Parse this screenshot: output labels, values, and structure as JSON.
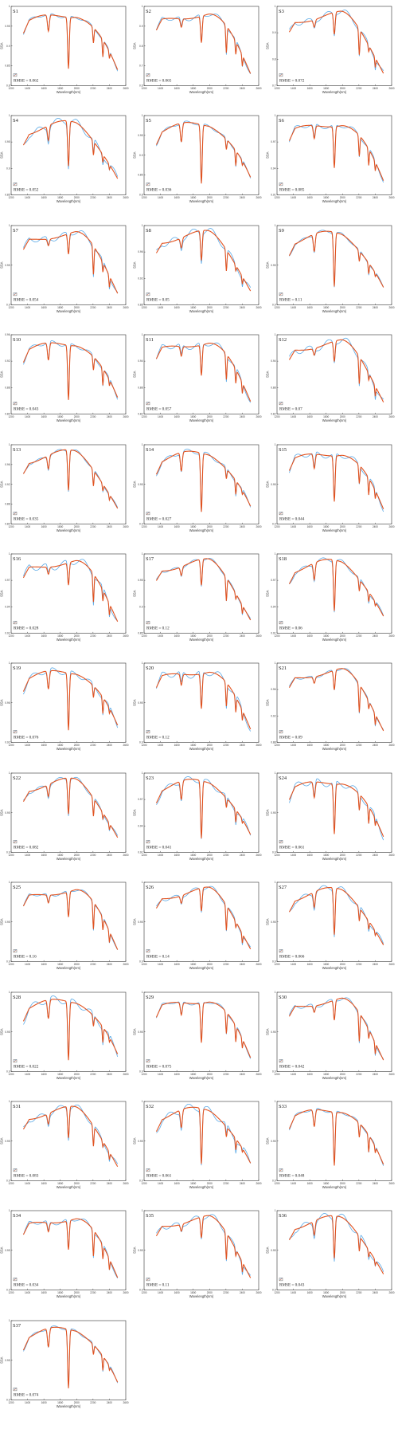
{
  "colors": {
    "measured": "#5aa9e6",
    "fitted": "#e2521f",
    "axis": "#333333"
  },
  "chart_common": {
    "type": "line",
    "xlabel": "Wavelength(nm)",
    "ylabel": "SSA",
    "x_ticks": [
      1200,
      1400,
      1600,
      1800,
      2000,
      2200,
      2400,
      2600
    ],
    "xlim": [
      1200,
      2600
    ],
    "x_range_plotted": [
      1350,
      2500
    ],
    "grid": false,
    "legend": "bottom-left"
  },
  "chart_data": [
    {
      "id": "S1",
      "rmse_label": "RMSE = 0.062",
      "ylim": [
        0.8,
        1.0
      ],
      "y_ticks": [
        "0.8",
        "0.85",
        "0.9",
        "0.95",
        "1"
      ]
    },
    {
      "id": "S2",
      "rmse_label": "RMSE = 0.065",
      "ylim": [
        0.6,
        1.0
      ],
      "y_ticks": [
        "0.6",
        "0.7",
        "0.8",
        "0.9",
        "1"
      ]
    },
    {
      "id": "S3",
      "rmse_label": "RMSE = 0.072",
      "ylim": [
        0.7,
        1.0
      ],
      "y_ticks": [
        "0.7",
        "0.8",
        "0.9",
        "1"
      ]
    },
    {
      "id": "S4",
      "rmse_label": "RMSE = 0.052",
      "ylim": [
        0.85,
        1.0
      ],
      "y_ticks": [
        "0.85",
        "0.9",
        "0.95",
        "1"
      ]
    },
    {
      "id": "S5",
      "rmse_label": "RMSE = 0.036",
      "ylim": [
        0.8,
        1.0
      ],
      "y_ticks": [
        "0.8",
        "0.85",
        "0.9",
        "0.95",
        "1"
      ]
    },
    {
      "id": "S6",
      "rmse_label": "RMSE = 0.085",
      "ylim": [
        0.91,
        1.0
      ],
      "y_ticks": [
        "0.91",
        "0.94",
        "0.97",
        "1"
      ]
    },
    {
      "id": "S7",
      "rmse_label": "RMSE = 0.054",
      "ylim": [
        0.9,
        1.0
      ],
      "y_ticks": [
        "0.9",
        "0.95",
        "1"
      ]
    },
    {
      "id": "S8",
      "rmse_label": "RMSE = 0.05",
      "ylim": [
        0.88,
        1.0
      ],
      "y_ticks": [
        "0.88",
        "0.92",
        "0.96",
        "1"
      ]
    },
    {
      "id": "S9",
      "rmse_label": "RMSE = 0.11",
      "ylim": [
        0.9,
        1.0
      ],
      "y_ticks": [
        "0.9",
        "0.95",
        "1"
      ]
    },
    {
      "id": "S10",
      "rmse_label": "RMSE = 0.043",
      "ylim": [
        0.84,
        0.98
      ],
      "y_ticks": [
        "0.84",
        "0.88",
        "0.92",
        "0.96"
      ]
    },
    {
      "id": "S11",
      "rmse_label": "RMSE = 0.057",
      "ylim": [
        0.82,
        1.0
      ],
      "y_ticks": [
        "0.82",
        "0.88",
        "0.94",
        "1"
      ]
    },
    {
      "id": "S12",
      "rmse_label": "RMSE = 0.07",
      "ylim": [
        0.82,
        1.0
      ],
      "y_ticks": [
        "0.82",
        "0.88",
        "0.94",
        "1"
      ]
    },
    {
      "id": "S13",
      "rmse_label": "RMSE = 0.035",
      "ylim": [
        0.84,
        1.0
      ],
      "y_ticks": [
        "0.84",
        "0.88",
        "0.92",
        "0.96",
        "1"
      ]
    },
    {
      "id": "S14",
      "rmse_label": "RMSE = 0.027",
      "ylim": [
        0.9,
        1.0
      ],
      "y_ticks": [
        "0.9",
        "0.95",
        "1"
      ]
    },
    {
      "id": "S15",
      "rmse_label": "RMSE = 0.044",
      "ylim": [
        0.9,
        1.0
      ],
      "y_ticks": [
        "0.9",
        "0.95",
        "1"
      ]
    },
    {
      "id": "S16",
      "rmse_label": "RMSE = 0.028",
      "ylim": [
        0.91,
        1.0
      ],
      "y_ticks": [
        "0.91",
        "0.94",
        "0.97",
        "1"
      ]
    },
    {
      "id": "S17",
      "rmse_label": "RMSE = 0.12",
      "ylim": [
        0.85,
        1.0
      ],
      "y_ticks": [
        "0.85",
        "0.9",
        "0.95",
        "1"
      ]
    },
    {
      "id": "S18",
      "rmse_label": "RMSE = 0.06",
      "ylim": [
        0.91,
        1.0
      ],
      "y_ticks": [
        "0.91",
        "0.94",
        "0.97",
        "1"
      ]
    },
    {
      "id": "S19",
      "rmse_label": "RMSE = 0.076",
      "ylim": [
        0.92,
        1.0
      ],
      "y_ticks": [
        "0.92",
        "0.96",
        "1"
      ]
    },
    {
      "id": "S20",
      "rmse_label": "RMSE = 0.12",
      "ylim": [
        0.9,
        1.0
      ],
      "y_ticks": [
        "0.9",
        "0.95",
        "1"
      ]
    },
    {
      "id": "S21",
      "rmse_label": "RMSE = 0.09",
      "ylim": [
        0.88,
        1.0
      ],
      "y_ticks": [
        "0.88",
        "0.92",
        "0.96",
        "1"
      ]
    },
    {
      "id": "S22",
      "rmse_label": "RMSE = 0.082",
      "ylim": [
        0.9,
        1.0
      ],
      "y_ticks": [
        "0.9",
        "0.95",
        "1"
      ]
    },
    {
      "id": "S23",
      "rmse_label": "RMSE = 0.041",
      "ylim": [
        0.91,
        1.0
      ],
      "y_ticks": [
        "0.91",
        "0.94",
        "0.97",
        "1"
      ]
    },
    {
      "id": "S24",
      "rmse_label": "RMSE = 0.061",
      "ylim": [
        0.9,
        1.0
      ],
      "y_ticks": [
        "0.9",
        "0.95",
        "1"
      ]
    },
    {
      "id": "S25",
      "rmse_label": "RMSE = 0.16",
      "ylim": [
        0.9,
        1.0
      ],
      "y_ticks": [
        "0.9",
        "0.95",
        "1"
      ]
    },
    {
      "id": "S26",
      "rmse_label": "RMSE = 0.14",
      "ylim": [
        0.9,
        1.0
      ],
      "y_ticks": [
        "0.9",
        "0.95",
        "1"
      ]
    },
    {
      "id": "S27",
      "rmse_label": "RMSE = 0.066",
      "ylim": [
        0.9,
        1.0
      ],
      "y_ticks": [
        "0.9",
        "0.95",
        "1"
      ]
    },
    {
      "id": "S28",
      "rmse_label": "RMSE = 0.022",
      "ylim": [
        0.9,
        1.0
      ],
      "y_ticks": [
        "0.9",
        "0.95",
        "1"
      ]
    },
    {
      "id": "S29",
      "rmse_label": "RMSE = 0.075",
      "ylim": [
        0.9,
        1.0
      ],
      "y_ticks": [
        "0.9",
        "0.95",
        "1"
      ]
    },
    {
      "id": "S30",
      "rmse_label": "RMSE = 0.042",
      "ylim": [
        0.9,
        1.0
      ],
      "y_ticks": [
        "0.9",
        "0.95",
        "1"
      ]
    },
    {
      "id": "S31",
      "rmse_label": "RMSE = 0.083",
      "ylim": [
        0.9,
        1.0
      ],
      "y_ticks": [
        "0.9",
        "0.95",
        "1"
      ]
    },
    {
      "id": "S32",
      "rmse_label": "RMSE = 0.061",
      "ylim": [
        0.9,
        1.0
      ],
      "y_ticks": [
        "0.9",
        "0.95",
        "1"
      ]
    },
    {
      "id": "S33",
      "rmse_label": "RMSE = 0.048",
      "ylim": [
        0.9,
        1.0
      ],
      "y_ticks": [
        "0.9",
        "0.95",
        "1"
      ]
    },
    {
      "id": "S34",
      "rmse_label": "RMSE = 0.034",
      "ylim": [
        0.9,
        1.0
      ],
      "y_ticks": [
        "0.9",
        "0.95",
        "1"
      ]
    },
    {
      "id": "S35",
      "rmse_label": "RMSE = 0.11",
      "ylim": [
        0.9,
        1.0
      ],
      "y_ticks": [
        "0.9",
        "0.95",
        "1"
      ]
    },
    {
      "id": "S36",
      "rmse_label": "RMSE = 0.043",
      "ylim": [
        0.9,
        1.0
      ],
      "y_ticks": [
        "0.9",
        "0.95",
        "1"
      ]
    },
    {
      "id": "S37",
      "rmse_label": "RMSE = 0.074",
      "ylim": [
        0.9,
        1.0
      ],
      "y_ticks": [
        "0.9",
        "0.95",
        "1"
      ]
    }
  ]
}
